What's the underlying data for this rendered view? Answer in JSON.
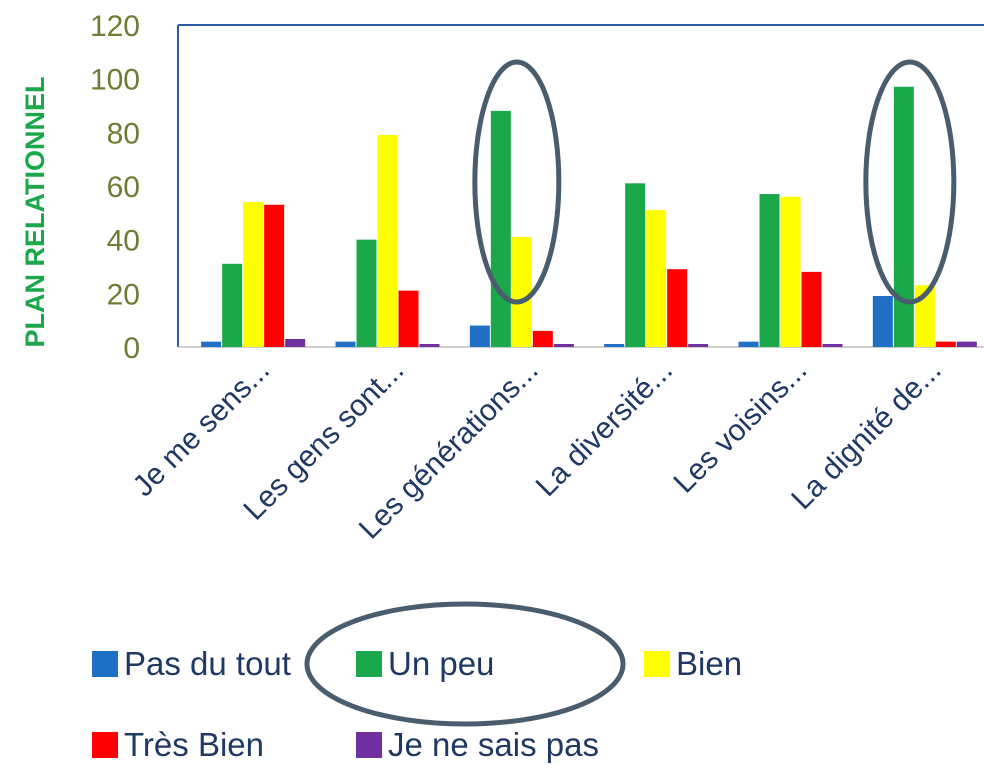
{
  "chart_data": {
    "type": "bar",
    "ylabel": "PLAN RELATIONNEL",
    "ylim": [
      0,
      120
    ],
    "yticks": [
      0,
      20,
      40,
      60,
      80,
      100,
      120
    ],
    "categories": [
      "Je me sens...",
      "Les gens sont...",
      "Les générations...",
      "La diversité...",
      "Les voisins...",
      "La dignité de..."
    ],
    "series": [
      {
        "name": "Pas du tout",
        "color": "#1f6fc5",
        "values": [
          2,
          2,
          8,
          1,
          2,
          19
        ]
      },
      {
        "name": "Un peu",
        "color": "#1aa84b",
        "values": [
          31,
          40,
          88,
          61,
          57,
          97
        ]
      },
      {
        "name": "Bien",
        "color": "#ffff00",
        "values": [
          54,
          79,
          41,
          51,
          56,
          23
        ]
      },
      {
        "name": "Très Bien",
        "color": "#ff0000",
        "values": [
          53,
          21,
          6,
          29,
          28,
          2
        ]
      },
      {
        "name": "Je ne sais pas",
        "color": "#7030a0",
        "values": [
          3,
          1,
          0,
          1,
          0,
          2
        ]
      }
    ],
    "grid": false,
    "legend_position": "bottom",
    "highlighted": [
      "Les générations...",
      "La dignité de...",
      "Un peu"
    ]
  },
  "colors": {
    "tick_text": "#6f7d34",
    "ylabel": "#1aa84b",
    "highlight_ring": "#4a5d6e",
    "frame": "#2e5aa8"
  }
}
